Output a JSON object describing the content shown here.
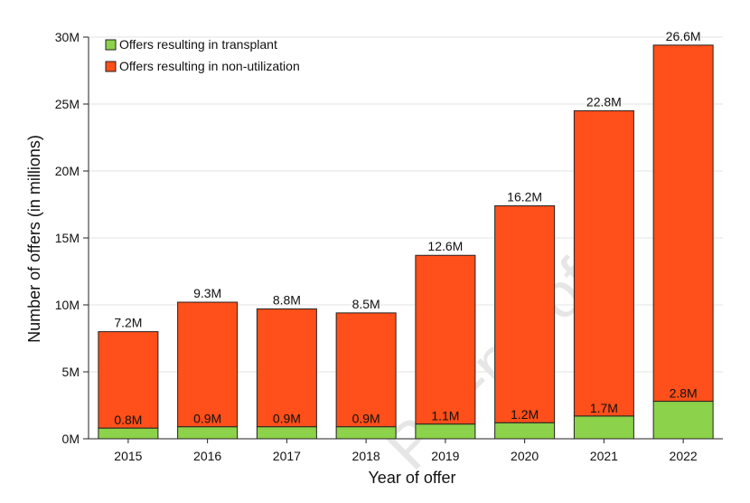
{
  "colors": {
    "transplant": "#8cd24a",
    "non_utilization": "#ff4f1a",
    "bar_stroke": "#222222",
    "grid": "#e3e3e3"
  },
  "watermark_text": "Pre-proof",
  "chart_data": {
    "type": "bar",
    "stacked": true,
    "categories": [
      "2015",
      "2016",
      "2017",
      "2018",
      "2019",
      "2020",
      "2021",
      "2022"
    ],
    "series": [
      {
        "name": "Offers resulting in transplant",
        "values": [
          0.8,
          0.9,
          0.9,
          0.9,
          1.1,
          1.2,
          1.7,
          2.8
        ],
        "labels": [
          "0.8M",
          "0.9M",
          "0.9M",
          "0.9M",
          "1.1M",
          "1.2M",
          "1.7M",
          "2.8M"
        ]
      },
      {
        "name": "Offers resulting in non-utilization",
        "values": [
          7.2,
          9.3,
          8.8,
          8.5,
          12.6,
          16.2,
          22.8,
          26.6
        ],
        "labels": [
          "7.2M",
          "9.3M",
          "8.8M",
          "8.5M",
          "12.6M",
          "16.2M",
          "22.8M",
          "26.6M"
        ]
      }
    ],
    "xlabel": "Year of offer",
    "ylabel": "Number of offers (in millions)",
    "ylim": [
      0,
      30
    ],
    "yticks": [
      0,
      5,
      10,
      15,
      20,
      25,
      30
    ],
    "ytick_labels": [
      "0M",
      "5M",
      "10M",
      "15M",
      "20M",
      "25M",
      "30M"
    ],
    "grid": true,
    "legend": "top-left"
  }
}
